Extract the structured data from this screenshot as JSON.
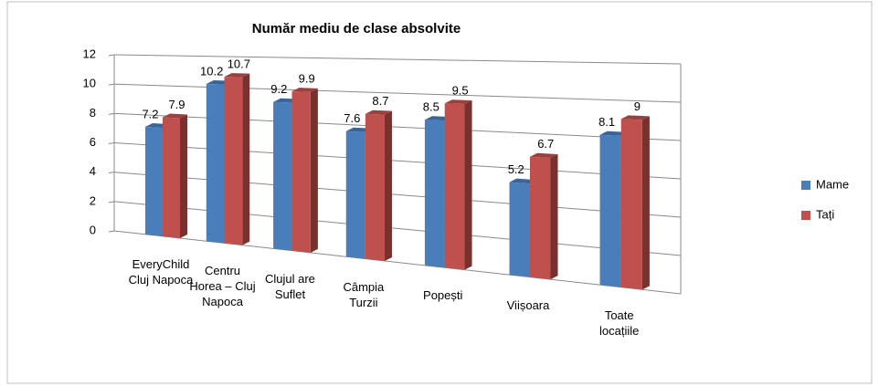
{
  "chart_data": {
    "type": "bar3d",
    "title": "Număr mediu de clase absolvite",
    "categories": [
      "EveryChild Cluj Napoca",
      "Centru Horea – Cluj Napoca",
      "Clujul are Suflet",
      "Câmpia Turzii",
      "Popești",
      "Viișoara",
      "Toate locațiile"
    ],
    "series": [
      {
        "name": "Mame",
        "color": "#4a7ebb",
        "values": [
          7.2,
          10.2,
          9.2,
          7.6,
          8.5,
          5.2,
          8.1
        ]
      },
      {
        "name": "Tați",
        "color": "#c0504d",
        "values": [
          7.9,
          10.7,
          9.9,
          8.7,
          9.5,
          6.7,
          9
        ]
      }
    ],
    "ylim": [
      0,
      12
    ],
    "yticks": [
      0,
      2,
      4,
      6,
      8,
      10,
      12
    ],
    "grid": true,
    "legend": "right"
  }
}
